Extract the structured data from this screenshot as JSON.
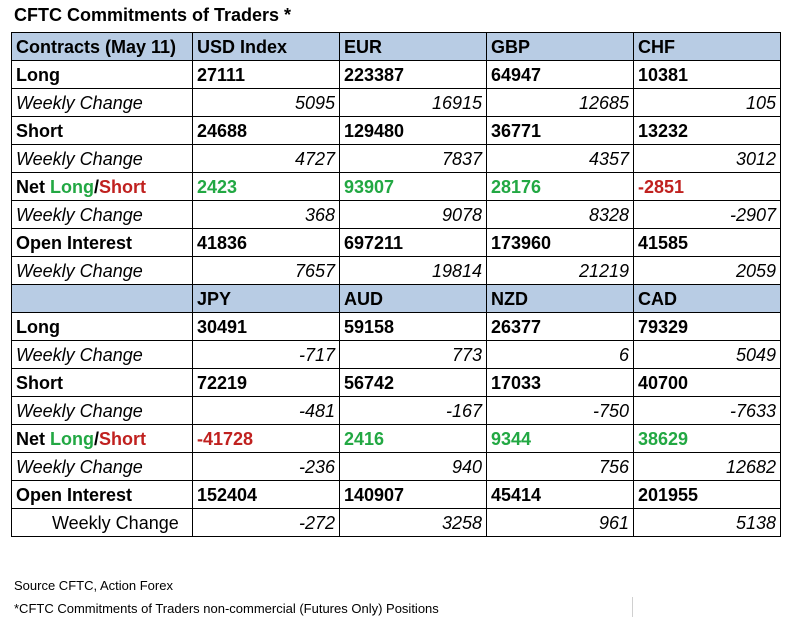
{
  "title": "CFTC Commitments of Traders *",
  "table1": {
    "corner": "Contracts (May 11)",
    "currencies": [
      "USD Index",
      "EUR",
      "GBP",
      "CHF"
    ],
    "rows": [
      {
        "label": "Long",
        "values": [
          "27111",
          "223387",
          "64947",
          "10381"
        ]
      },
      {
        "label": "Weekly Change",
        "values": [
          "5095",
          "16915",
          "12685",
          "105"
        ]
      },
      {
        "label": "Short",
        "values": [
          "24688",
          "129480",
          "36771",
          "13232"
        ]
      },
      {
        "label": "Weekly Change",
        "values": [
          "4727",
          "7837",
          "4357",
          "3012"
        ]
      },
      {
        "label_net": "Net ",
        "label_long": "Long",
        "label_slash": "/",
        "label_short": "Short",
        "values": [
          "2423",
          "93907",
          "28176",
          "-2851"
        ]
      },
      {
        "label": "Weekly Change",
        "values": [
          "368",
          "9078",
          "8328",
          "-2907"
        ]
      },
      {
        "label": "Open Interest",
        "values": [
          "41836",
          "697211",
          "173960",
          "41585"
        ]
      },
      {
        "label": "Weekly Change",
        "values": [
          "7657",
          "19814",
          "21219",
          "2059"
        ]
      }
    ]
  },
  "table2": {
    "corner": "",
    "currencies": [
      "JPY",
      "AUD",
      "NZD",
      "CAD"
    ],
    "rows": [
      {
        "label": "Long",
        "values": [
          "30491",
          "59158",
          "26377",
          "79329"
        ]
      },
      {
        "label": "Weekly Change",
        "values": [
          "-717",
          "773",
          "6",
          "5049"
        ]
      },
      {
        "label": "Short",
        "values": [
          "72219",
          "56742",
          "17033",
          "40700"
        ]
      },
      {
        "label": "Weekly Change",
        "values": [
          "-481",
          "-167",
          "-750",
          "-7633"
        ]
      },
      {
        "label_net": "Net ",
        "label_long": "Long",
        "label_slash": "/",
        "label_short": "Short",
        "values": [
          "-41728",
          "2416",
          "9344",
          "38629"
        ]
      },
      {
        "label": "Weekly Change",
        "values": [
          "-236",
          "940",
          "756",
          "12682"
        ]
      },
      {
        "label": "Open Interest",
        "values": [
          "152404",
          "140907",
          "45414",
          "201955"
        ]
      },
      {
        "label": "Weekly Change",
        "values": [
          "-272",
          "3258",
          "961",
          "5138"
        ]
      }
    ]
  },
  "colors": {
    "positive_net": "#22a843",
    "negative_net": "#c0211f",
    "header_bg": "#b8cce4"
  },
  "footer": {
    "source": "Source CFTC, Action Forex",
    "note": "*CFTC Commitments of Traders non-commercial (Futures Only) Positions"
  }
}
